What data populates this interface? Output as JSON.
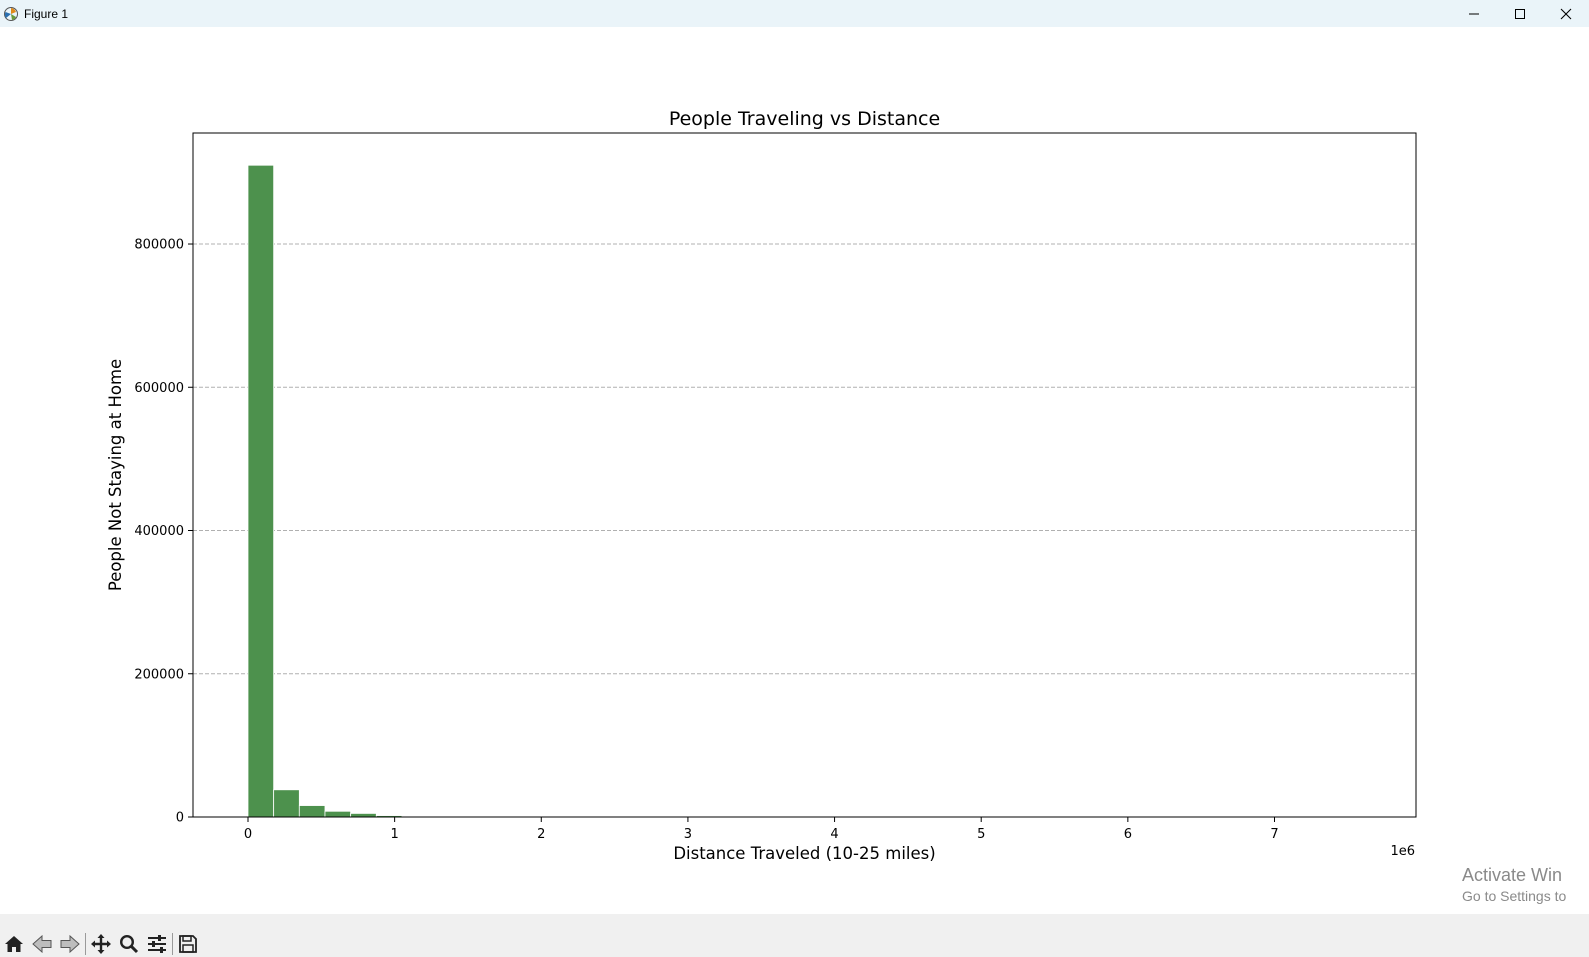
{
  "window": {
    "title": "Figure 1",
    "icon": "matplotlib-icon",
    "controls": [
      "minimize-icon",
      "maximize-icon",
      "close-icon"
    ]
  },
  "toolbar": {
    "buttons": [
      "home-icon",
      "back-arrow-icon",
      "forward-arrow-icon",
      "pan-move-icon",
      "zoom-magnifier-icon",
      "configure-subplots-icon",
      "save-floppy-icon"
    ]
  },
  "watermark": {
    "line1": "Activate Win",
    "line2": "Go to Settings to"
  },
  "chart_data": {
    "type": "bar",
    "title": "People Traveling vs Distance",
    "xlabel": "Distance Traveled (10-25 miles)",
    "ylabel": "People Not Staying at Home",
    "x_offset_text": "1e6",
    "x_scale": 1000000,
    "xlim": [
      -375000,
      7965000
    ],
    "ylim": [
      0,
      955000
    ],
    "x_ticks": [
      0,
      1,
      2,
      3,
      4,
      5,
      6,
      7
    ],
    "y_ticks": [
      0,
      200000,
      400000,
      600000,
      800000
    ],
    "bin_width": 175000,
    "bin_edges": [
      0,
      175000,
      350000,
      525000,
      700000,
      875000,
      1050000,
      1225000,
      1400000,
      1575000,
      1750000
    ],
    "values": [
      910000,
      38000,
      16000,
      8000,
      5000,
      2000,
      1000,
      600,
      300,
      200
    ],
    "bar_color": "#4d914d",
    "bar_edge_color": "#ffffff",
    "grid": "y-dashed",
    "legend": "none"
  }
}
